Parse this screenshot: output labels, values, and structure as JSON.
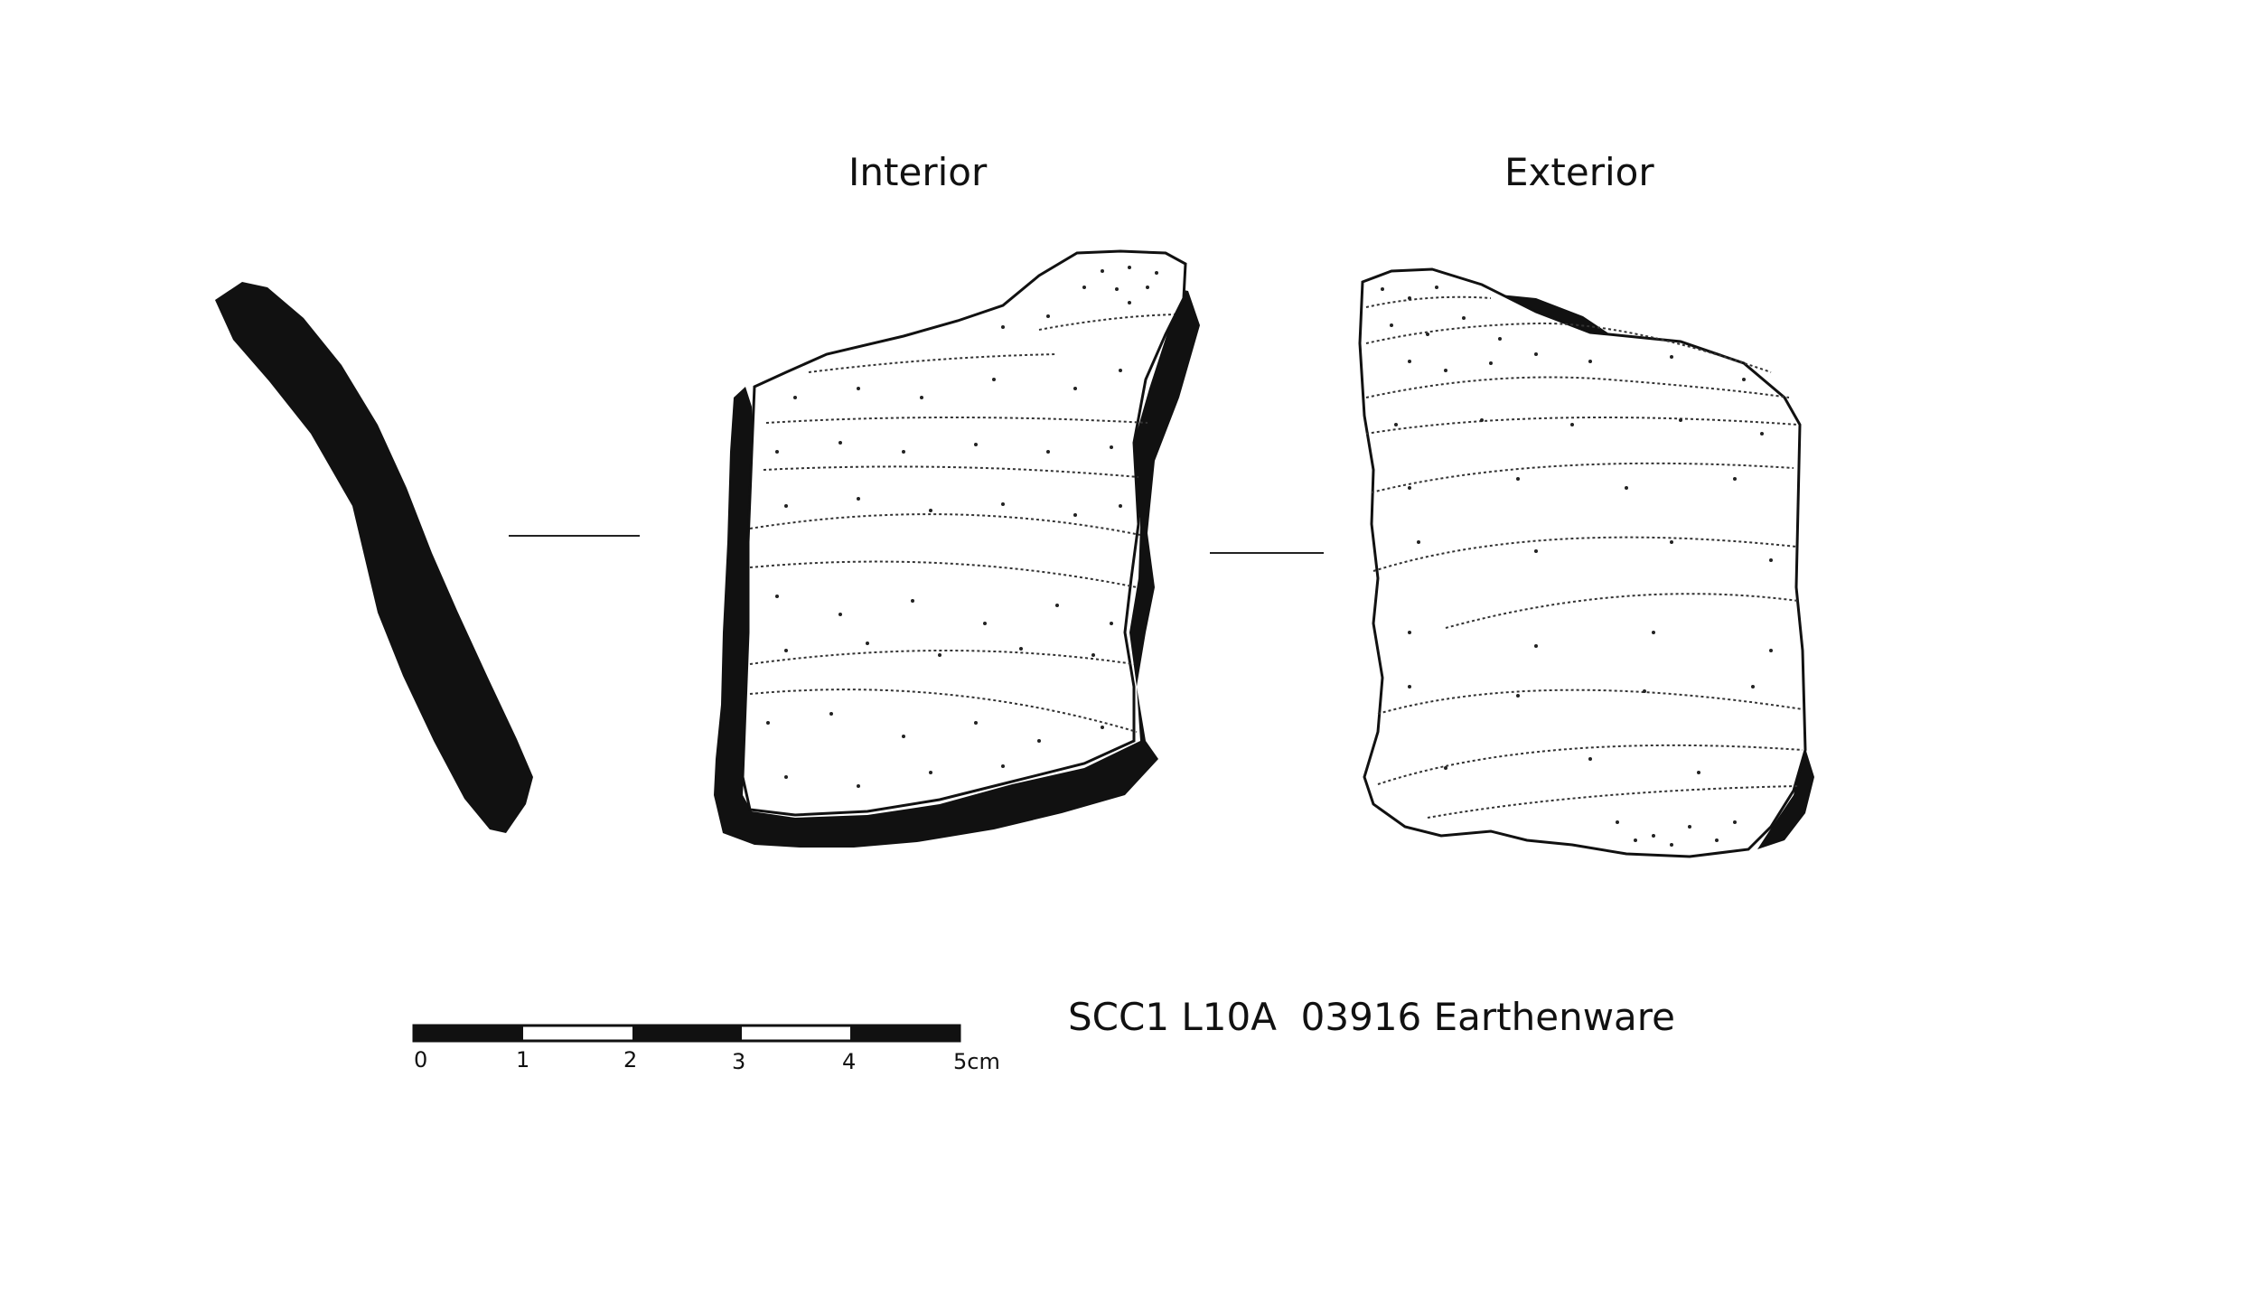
{
  "views": {
    "interior_label": "Interior",
    "exterior_label": "Exterior"
  },
  "scale_bar": {
    "tick_labels": [
      "0",
      "1",
      "2",
      "3",
      "4",
      "5cm"
    ],
    "units": "cm",
    "length": 5
  },
  "caption": "SCC1 L10A  03916 Earthenware",
  "colors": {
    "ink": "#111111",
    "background": "#ffffff"
  }
}
